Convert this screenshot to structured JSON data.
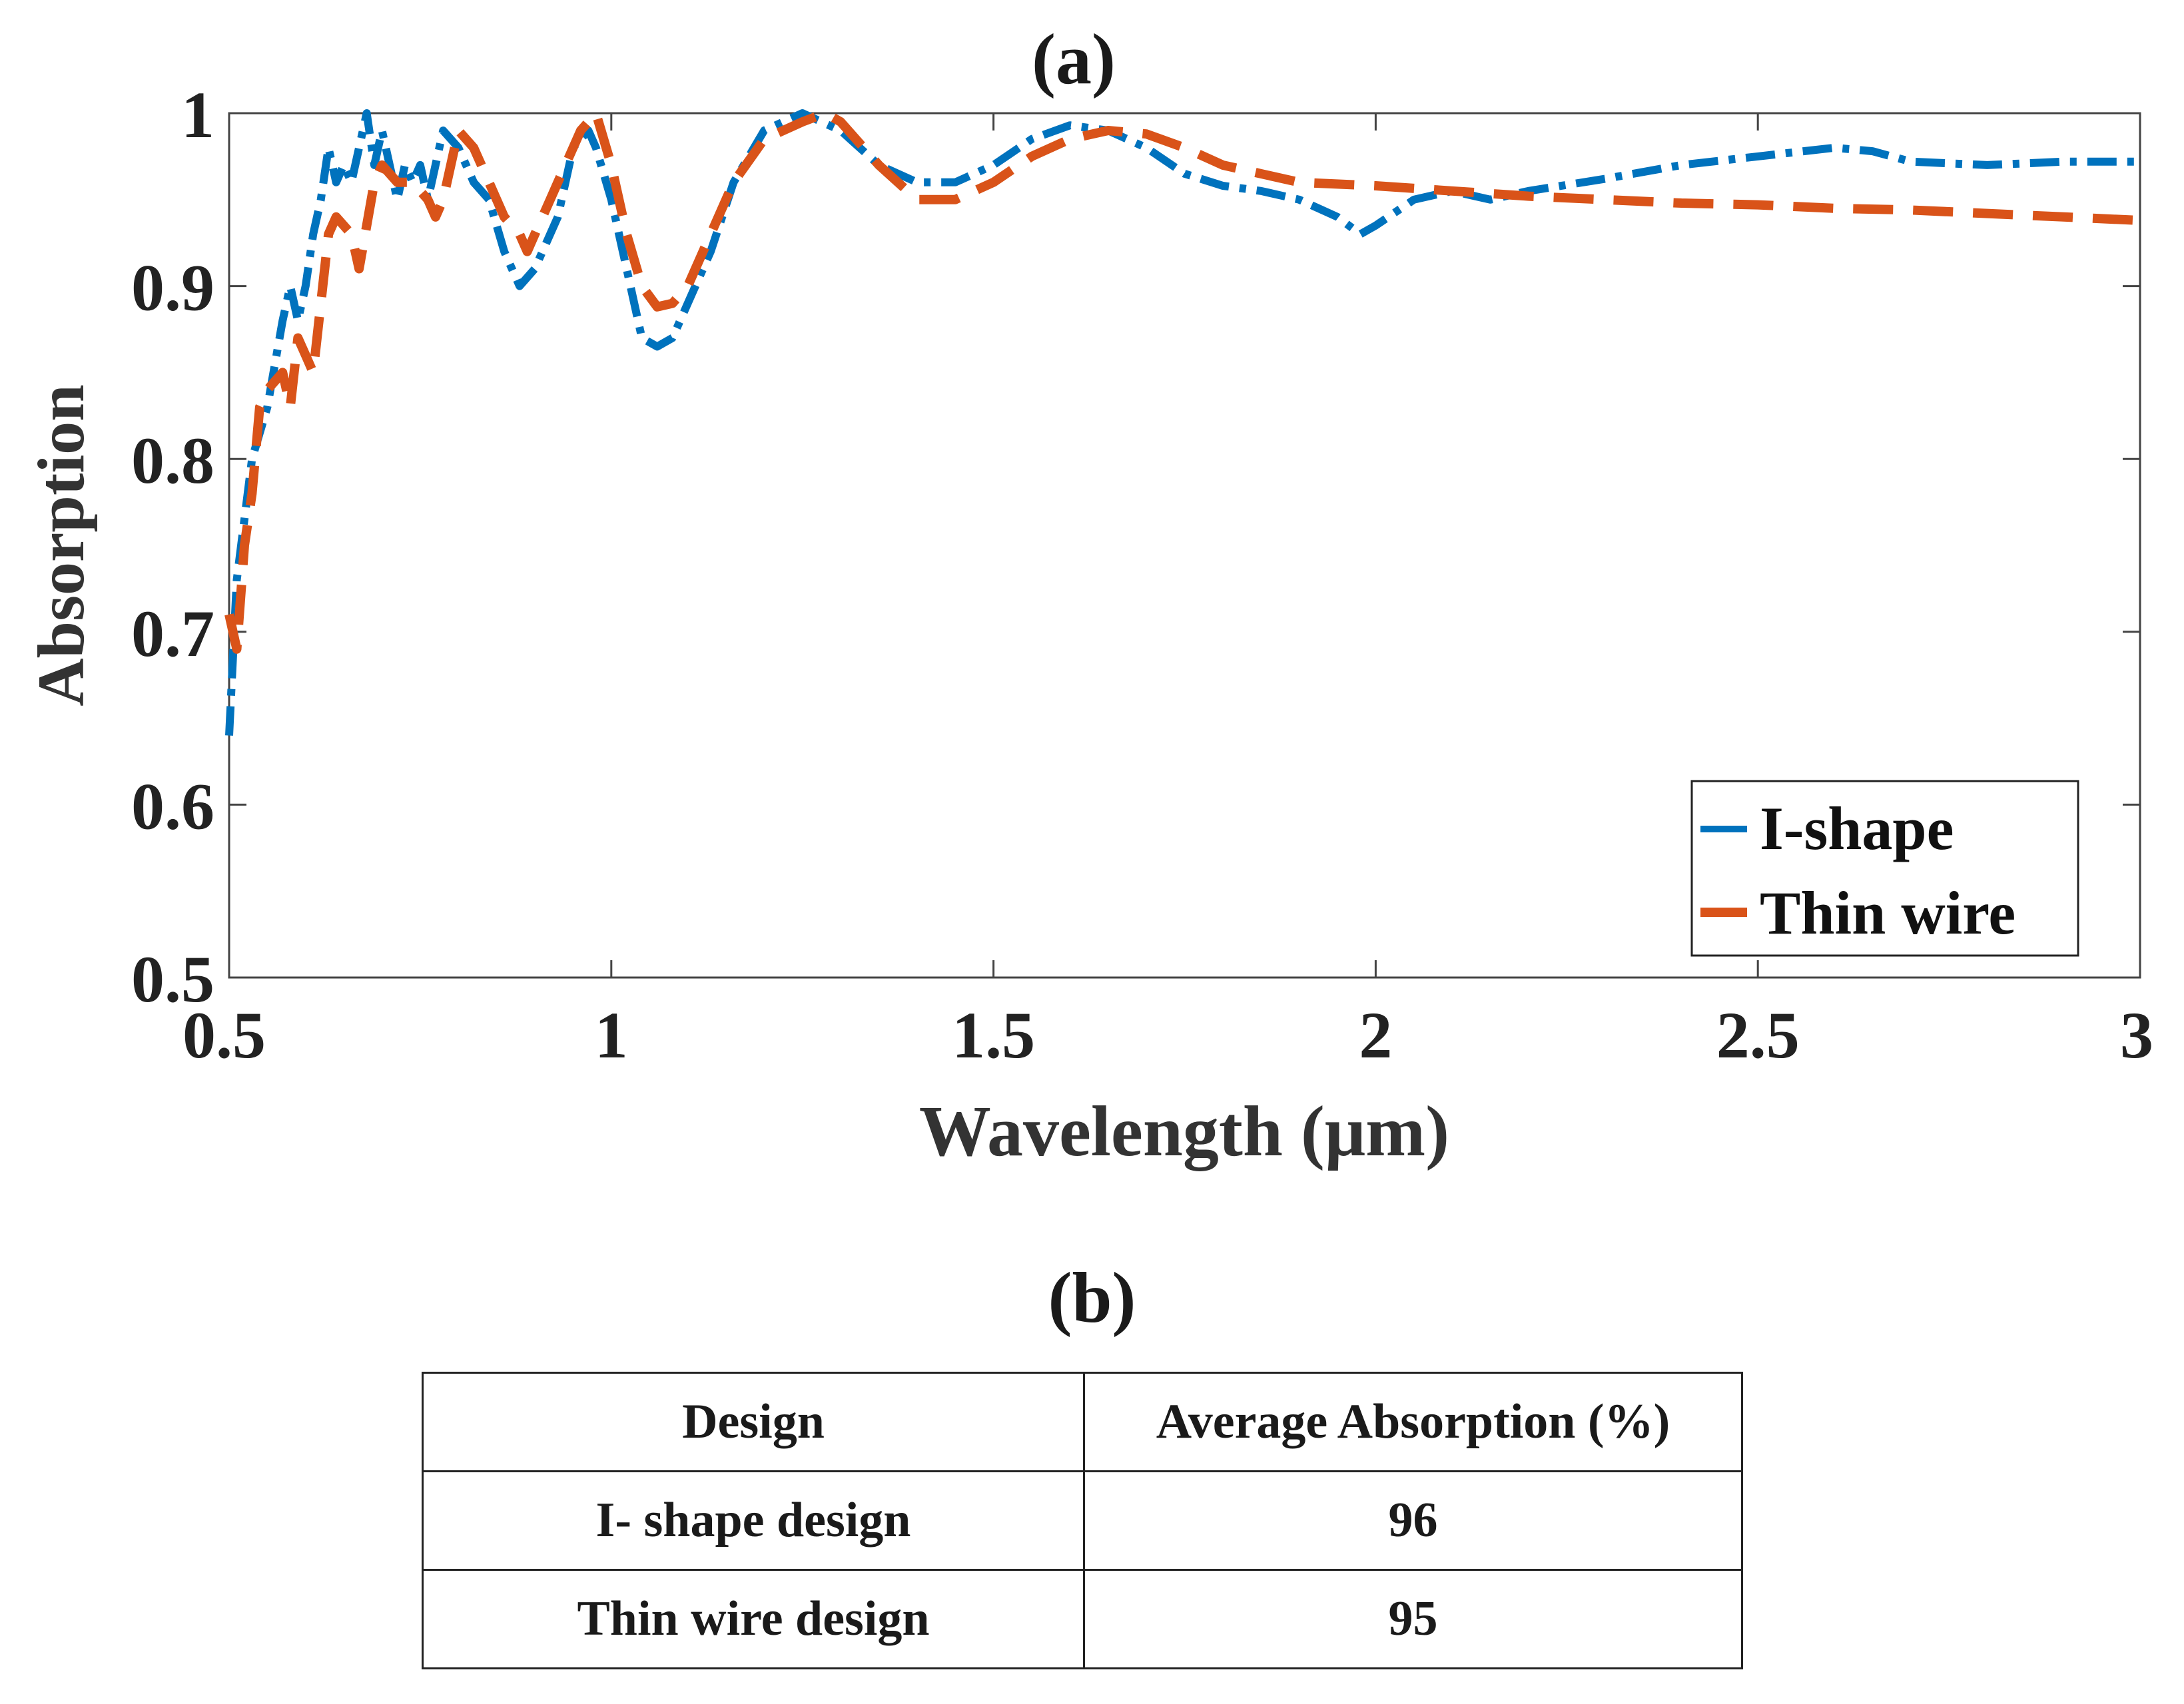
{
  "chart_data": {
    "type": "line",
    "title": "(a)",
    "xlabel": "Wavelength (μm)",
    "ylabel": "Absorption",
    "xlim": [
      0.5,
      3
    ],
    "ylim": [
      0.5,
      1
    ],
    "xticks": [
      "0.5",
      "1",
      "1.5",
      "2",
      "2.5",
      "3"
    ],
    "yticks": [
      "0.5",
      "0.6",
      "0.7",
      "0.8",
      "0.9",
      "1"
    ],
    "grid": false,
    "legend_position": "bottom-right",
    "series": [
      {
        "name": "I-shape",
        "color": "#0072BD",
        "dash": "dash-dot",
        "points": [
          [
            0.5,
            0.64
          ],
          [
            0.51,
            0.73
          ],
          [
            0.53,
            0.8
          ],
          [
            0.55,
            0.83
          ],
          [
            0.57,
            0.88
          ],
          [
            0.58,
            0.9
          ],
          [
            0.59,
            0.88
          ],
          [
            0.6,
            0.9
          ],
          [
            0.61,
            0.93
          ],
          [
            0.62,
            0.95
          ],
          [
            0.63,
            0.98
          ],
          [
            0.64,
            0.96
          ],
          [
            0.65,
            0.97
          ],
          [
            0.66,
            0.96
          ],
          [
            0.68,
            1.0
          ],
          [
            0.69,
            0.97
          ],
          [
            0.7,
            0.99
          ],
          [
            0.72,
            0.95
          ],
          [
            0.73,
            0.97
          ],
          [
            0.74,
            0.96
          ],
          [
            0.75,
            0.97
          ],
          [
            0.76,
            0.95
          ],
          [
            0.78,
            0.99
          ],
          [
            0.8,
            0.98
          ],
          [
            0.82,
            0.96
          ],
          [
            0.84,
            0.95
          ],
          [
            0.86,
            0.92
          ],
          [
            0.88,
            0.9
          ],
          [
            0.9,
            0.91
          ],
          [
            0.92,
            0.93
          ],
          [
            0.93,
            0.94
          ],
          [
            0.95,
            0.98
          ],
          [
            0.97,
            0.99
          ],
          [
            0.98,
            0.98
          ],
          [
            1.0,
            0.95
          ],
          [
            1.02,
            0.91
          ],
          [
            1.04,
            0.87
          ],
          [
            1.06,
            0.865
          ],
          [
            1.08,
            0.87
          ],
          [
            1.1,
            0.89
          ],
          [
            1.13,
            0.92
          ],
          [
            1.16,
            0.96
          ],
          [
            1.2,
            0.99
          ],
          [
            1.25,
            1.0
          ],
          [
            1.3,
            0.99
          ],
          [
            1.35,
            0.97
          ],
          [
            1.4,
            0.96
          ],
          [
            1.45,
            0.96
          ],
          [
            1.5,
            0.97
          ],
          [
            1.55,
            0.985
          ],
          [
            1.6,
            0.993
          ],
          [
            1.65,
            0.99
          ],
          [
            1.7,
            0.98
          ],
          [
            1.75,
            0.965
          ],
          [
            1.8,
            0.958
          ],
          [
            1.85,
            0.955
          ],
          [
            1.9,
            0.95
          ],
          [
            1.95,
            0.94
          ],
          [
            1.98,
            0.93
          ],
          [
            2.0,
            0.935
          ],
          [
            2.05,
            0.95
          ],
          [
            2.1,
            0.955
          ],
          [
            2.15,
            0.95
          ],
          [
            2.2,
            0.955
          ],
          [
            2.3,
            0.962
          ],
          [
            2.4,
            0.97
          ],
          [
            2.5,
            0.975
          ],
          [
            2.6,
            0.98
          ],
          [
            2.65,
            0.978
          ],
          [
            2.7,
            0.972
          ],
          [
            2.8,
            0.97
          ],
          [
            2.9,
            0.972
          ],
          [
            3.0,
            0.972
          ]
        ]
      },
      {
        "name": "Thin wire",
        "color": "#D95319",
        "dash": "dashed",
        "points": [
          [
            0.5,
            0.71
          ],
          [
            0.51,
            0.69
          ],
          [
            0.52,
            0.75
          ],
          [
            0.53,
            0.78
          ],
          [
            0.54,
            0.83
          ],
          [
            0.55,
            0.84
          ],
          [
            0.57,
            0.85
          ],
          [
            0.58,
            0.83
          ],
          [
            0.59,
            0.87
          ],
          [
            0.6,
            0.86
          ],
          [
            0.61,
            0.85
          ],
          [
            0.62,
            0.89
          ],
          [
            0.63,
            0.93
          ],
          [
            0.64,
            0.94
          ],
          [
            0.66,
            0.93
          ],
          [
            0.67,
            0.91
          ],
          [
            0.69,
            0.96
          ],
          [
            0.7,
            0.97
          ],
          [
            0.72,
            0.96
          ],
          [
            0.74,
            0.96
          ],
          [
            0.76,
            0.95
          ],
          [
            0.77,
            0.94
          ],
          [
            0.78,
            0.95
          ],
          [
            0.8,
            0.99
          ],
          [
            0.82,
            0.98
          ],
          [
            0.84,
            0.96
          ],
          [
            0.86,
            0.94
          ],
          [
            0.88,
            0.93
          ],
          [
            0.89,
            0.92
          ],
          [
            0.9,
            0.93
          ],
          [
            0.92,
            0.95
          ],
          [
            0.94,
            0.97
          ],
          [
            0.96,
            0.99
          ],
          [
            0.98,
            1.0
          ],
          [
            1.0,
            0.97
          ],
          [
            1.02,
            0.93
          ],
          [
            1.04,
            0.9
          ],
          [
            1.06,
            0.888
          ],
          [
            1.08,
            0.89
          ],
          [
            1.1,
            0.9
          ],
          [
            1.13,
            0.93
          ],
          [
            1.16,
            0.96
          ],
          [
            1.2,
            0.985
          ],
          [
            1.25,
            0.995
          ],
          [
            1.28,
            1.0
          ],
          [
            1.3,
            0.995
          ],
          [
            1.35,
            0.97
          ],
          [
            1.4,
            0.95
          ],
          [
            1.45,
            0.95
          ],
          [
            1.5,
            0.96
          ],
          [
            1.55,
            0.975
          ],
          [
            1.6,
            0.985
          ],
          [
            1.65,
            0.99
          ],
          [
            1.7,
            0.988
          ],
          [
            1.75,
            0.98
          ],
          [
            1.8,
            0.97
          ],
          [
            1.85,
            0.965
          ],
          [
            1.9,
            0.96
          ],
          [
            2.0,
            0.958
          ],
          [
            2.1,
            0.955
          ],
          [
            2.2,
            0.952
          ],
          [
            2.3,
            0.95
          ],
          [
            2.4,
            0.948
          ],
          [
            2.5,
            0.947
          ],
          [
            2.6,
            0.945
          ],
          [
            2.7,
            0.944
          ],
          [
            2.8,
            0.942
          ],
          [
            2.9,
            0.94
          ],
          [
            3.0,
            0.938
          ]
        ]
      }
    ]
  },
  "table": {
    "title": "(b)",
    "headers": [
      "Design",
      "Average Absorption (%)"
    ],
    "rows": [
      [
        "I- shape design",
        "96"
      ],
      [
        "Thin wire design",
        "95"
      ]
    ]
  }
}
